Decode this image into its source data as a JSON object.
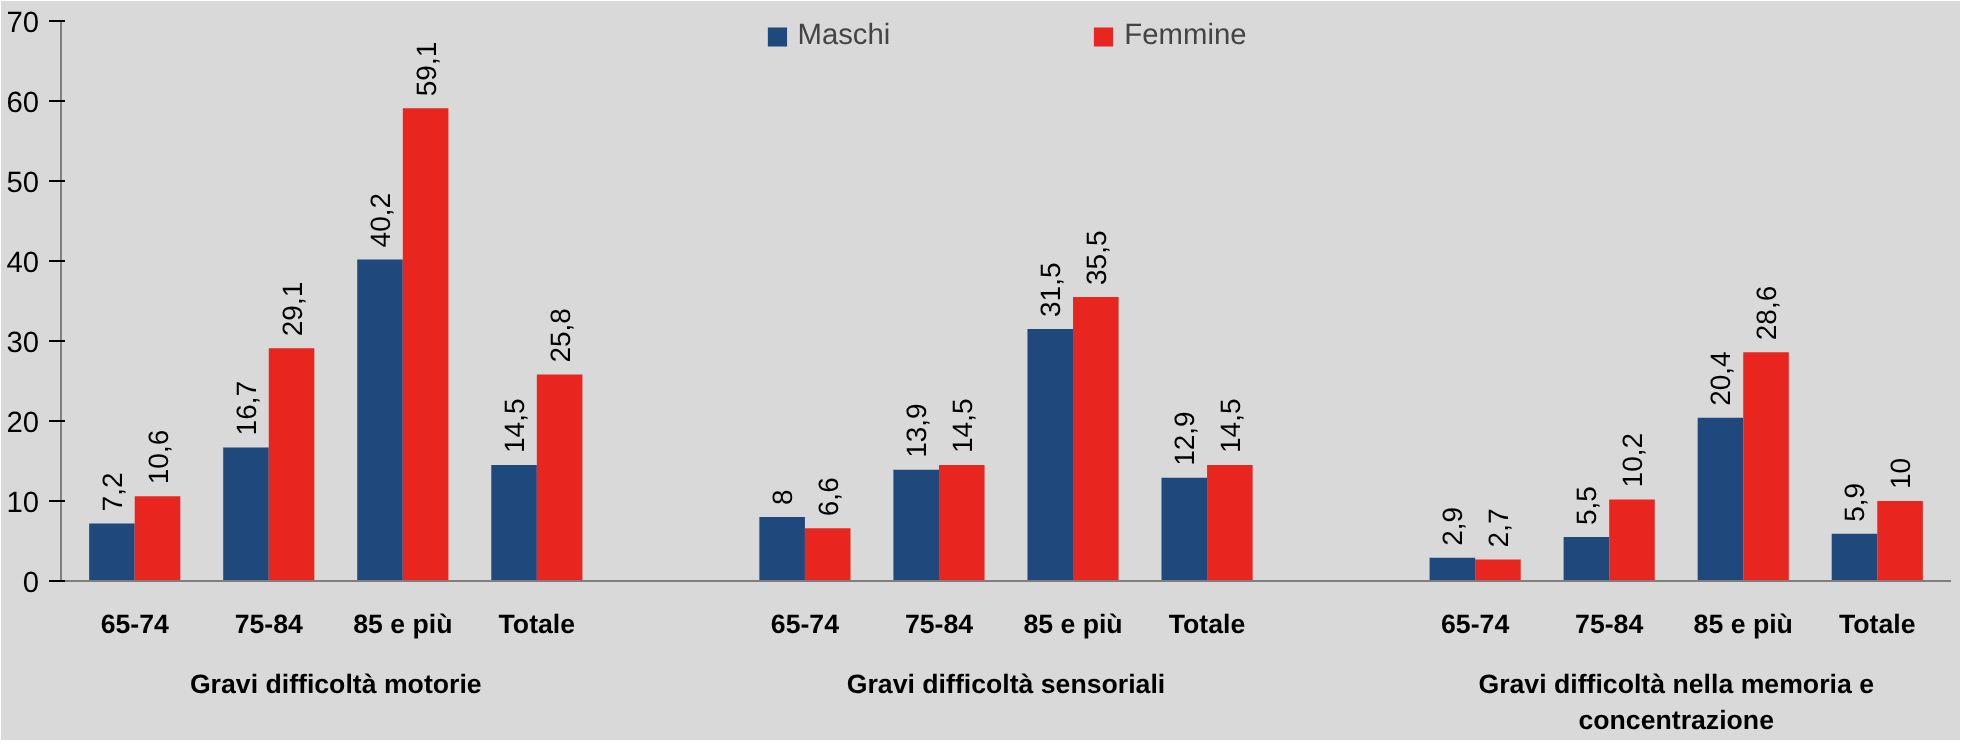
{
  "chart_data": {
    "type": "bar",
    "categories": [
      "65-74",
      "75-84",
      "85 e più",
      "Totale",
      null,
      "65-74",
      "75-84",
      "85 e più",
      "Totale",
      null,
      "65-74",
      "75-84",
      "85 e più",
      "Totale"
    ],
    "series": [
      {
        "name": "Maschi",
        "color": "#1f497d",
        "values": [
          7.2,
          16.7,
          40.2,
          14.5,
          null,
          8,
          13.9,
          31.5,
          12.9,
          null,
          2.9,
          5.5,
          20.4,
          5.9
        ],
        "value_labels": [
          "7,2",
          "16,7",
          "40,2",
          "14,5",
          null,
          "8",
          "13,9",
          "31,5",
          "12,9",
          null,
          "2,9",
          "5,5",
          "20,4",
          "5,9"
        ]
      },
      {
        "name": "Femmine",
        "color": "#e8261f",
        "values": [
          10.6,
          29.1,
          59.1,
          25.8,
          null,
          6.6,
          14.5,
          35.5,
          14.5,
          null,
          2.7,
          10.2,
          28.6,
          10
        ],
        "value_labels": [
          "10,6",
          "29,1",
          "59,1",
          "25,8",
          null,
          "6,6",
          "14,5",
          "35,5",
          "14,5",
          null,
          "2,7",
          "10,2",
          "28,6",
          "10"
        ]
      }
    ],
    "annotations": [
      "Gravi difficoltà motorie",
      "Gravi difficoltà sensoriali",
      "Gravi difficoltà nella memoria e concentrazione"
    ],
    "ylim": [
      0,
      70
    ],
    "yticks": [
      0,
      10,
      20,
      30,
      40,
      50,
      60,
      70
    ],
    "grid": false,
    "legend": "top"
  }
}
